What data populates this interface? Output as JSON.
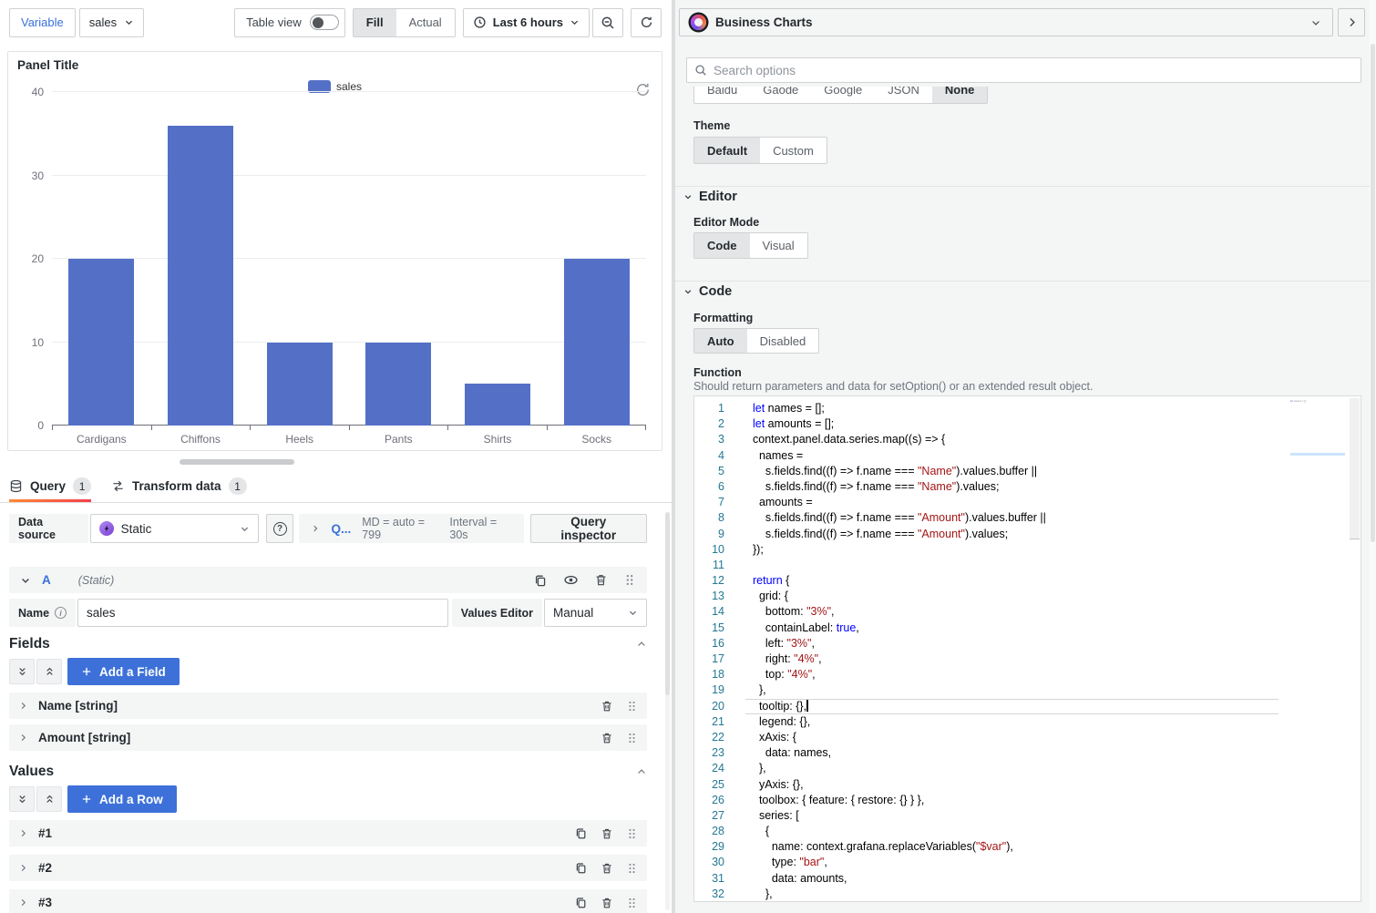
{
  "colors": {
    "bar": "#5470c6",
    "primary_button": "#3d71d9",
    "link": "#3871dc",
    "active_tab_gradient": [
      "#ff8833",
      "#f53e4c"
    ]
  },
  "toolbar": {
    "variable_label": "Variable",
    "variable_value": "sales",
    "table_view_label": "Table view",
    "fill_actual": {
      "options": [
        "Fill",
        "Actual"
      ],
      "selected": "Fill"
    },
    "time_range": "Last 6 hours"
  },
  "panel": {
    "title": "Panel Title"
  },
  "chart_data": {
    "type": "bar",
    "series_name": "sales",
    "categories": [
      "Cardigans",
      "Chiffons",
      "Heels",
      "Pants",
      "Shirts",
      "Socks"
    ],
    "values": [
      20,
      36,
      10,
      10,
      5,
      20
    ],
    "ylim": [
      0,
      40
    ],
    "yticks": [
      0,
      10,
      20,
      30,
      40
    ],
    "grid": true,
    "legend_position": "top",
    "color": "#5470c6"
  },
  "tabs": {
    "query_label": "Query",
    "query_count": "1",
    "transform_label": "Transform data",
    "transform_count": "1"
  },
  "query_row": {
    "datasource_label": "Data source",
    "datasource_name": "Static",
    "collapsed_query": "Q...",
    "max_data_points": "MD = auto = 799",
    "interval": "Interval = 30s",
    "inspector_label": "Query inspector"
  },
  "query_a": {
    "ref_id": "A",
    "type_label": "(Static)",
    "name_label": "Name",
    "name_value": "sales",
    "values_editor_label": "Values Editor",
    "values_editor_value": "Manual"
  },
  "fields_section": {
    "title": "Fields",
    "add_label": "Add a Field",
    "rows": [
      "Name [string]",
      "Amount [string]"
    ]
  },
  "values_section": {
    "title": "Values",
    "add_label": "Add a Row",
    "rows": [
      "#1",
      "#2",
      "#3"
    ]
  },
  "options_pane": {
    "viz_title": "Business Charts",
    "search_placeholder": "Search options",
    "map_group": {
      "options": [
        "Baidu",
        "Gaode",
        "Google",
        "JSON",
        "None"
      ],
      "selected": "None"
    },
    "theme": {
      "label": "Theme",
      "options": [
        "Default",
        "Custom"
      ],
      "selected": "Default"
    },
    "editor": {
      "title": "Editor",
      "mode_label": "Editor Mode",
      "mode": {
        "options": [
          "Code",
          "Visual"
        ],
        "selected": "Code"
      }
    },
    "code": {
      "title": "Code",
      "formatting_label": "Formatting",
      "formatting": {
        "options": [
          "Auto",
          "Disabled"
        ],
        "selected": "Auto"
      },
      "function_label": "Function",
      "function_hint": "Should return parameters and data for setOption() or an extended result object.",
      "active_line": 20,
      "lines": [
        "let names = [];",
        "let amounts = [];",
        "context.panel.data.series.map((s) => {",
        "  names =",
        "    s.fields.find((f) => f.name === \"Name\").values.buffer ||",
        "    s.fields.find((f) => f.name === \"Name\").values;",
        "  amounts =",
        "    s.fields.find((f) => f.name === \"Amount\").values.buffer ||",
        "    s.fields.find((f) => f.name === \"Amount\").values;",
        "});",
        "",
        "return {",
        "  grid: {",
        "    bottom: \"3%\",",
        "    containLabel: true,",
        "    left: \"3%\",",
        "    right: \"4%\",",
        "    top: \"4%\",",
        "  },",
        "  tooltip: {},",
        "  legend: {},",
        "  xAxis: {",
        "    data: names,",
        "  },",
        "  yAxis: {},",
        "  toolbox: { feature: { restore: {} } },",
        "  series: [",
        "    {",
        "      name: context.grafana.replaceVariables(\"$var\"),",
        "      type: \"bar\",",
        "      data: amounts,",
        "    },"
      ]
    }
  }
}
